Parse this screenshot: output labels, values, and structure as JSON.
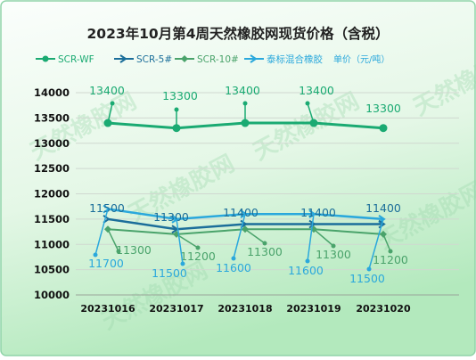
{
  "chart_data": {
    "type": "line",
    "title": "2023年10月第4周天然橡胶网现货价格（含税）",
    "categories": [
      "20231016",
      "20231017",
      "20231018",
      "20231019",
      "20231020"
    ],
    "ylim": [
      10000,
      14000
    ],
    "yticks": [
      10000,
      10500,
      11000,
      11500,
      12000,
      12500,
      13000,
      13500,
      14000
    ],
    "grid": true,
    "legend_position": "top",
    "unit_label": "单价（元/吨）",
    "series": [
      {
        "name": "SCR-WF",
        "color": "#1aaa72",
        "values": [
          13400,
          13300,
          13400,
          13400,
          13300
        ]
      },
      {
        "name": "SCR-5#",
        "color": "#1b6e9a",
        "values": [
          11500,
          11300,
          11400,
          11400,
          11400
        ]
      },
      {
        "name": "SCR-10#",
        "color": "#4aa36b",
        "values": [
          11300,
          11200,
          11300,
          11300,
          11200
        ]
      },
      {
        "name": "泰标混合橡胶",
        "color": "#2aa8dc",
        "values": [
          11700,
          11500,
          11600,
          11600,
          11500
        ]
      }
    ]
  },
  "watermark": "天然橡胶网",
  "colors": {
    "bg_top": "#fafdfb",
    "bg_bottom": "#b7ebbf",
    "border": "#8fd4a8",
    "title": "#222222"
  }
}
